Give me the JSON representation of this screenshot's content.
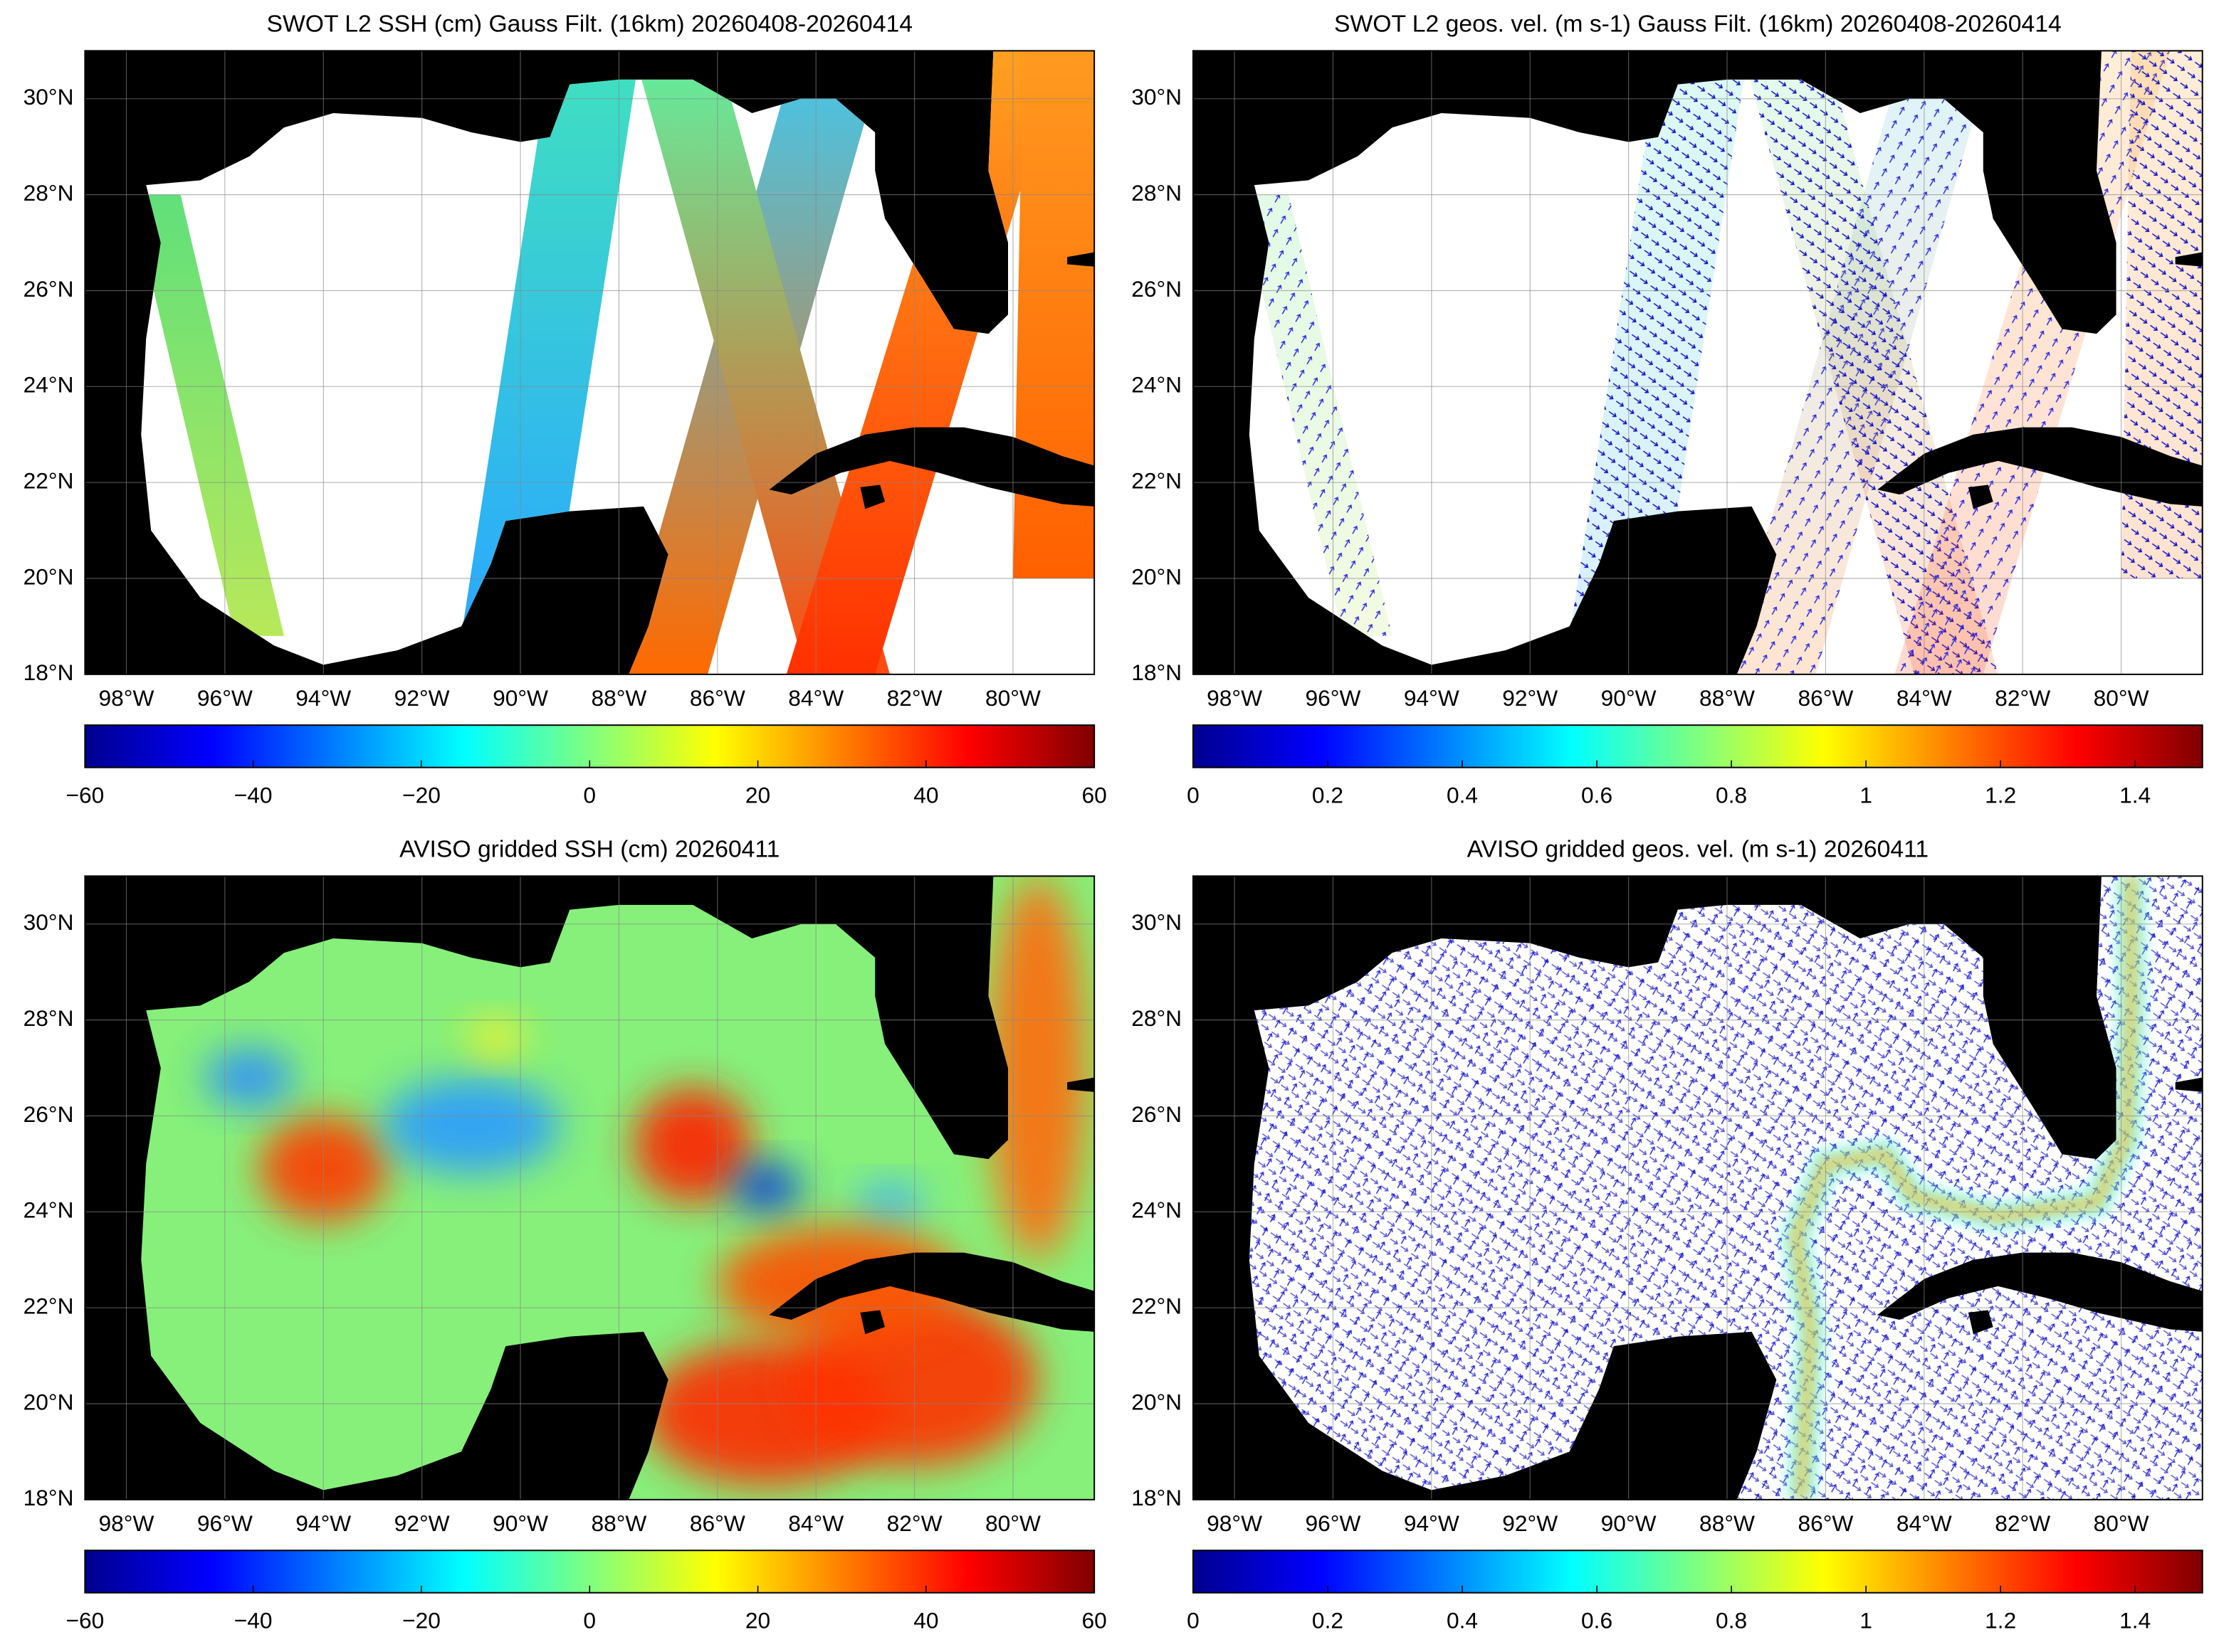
{
  "map": {
    "xlim": [
      -98.84,
      -78.35
    ],
    "ylim": [
      18,
      31
    ],
    "xticks": [
      {
        "value": -98,
        "label": "98°W"
      },
      {
        "value": -96,
        "label": "96°W"
      },
      {
        "value": -94,
        "label": "94°W"
      },
      {
        "value": -92,
        "label": "92°W"
      },
      {
        "value": -90,
        "label": "90°W"
      },
      {
        "value": -88,
        "label": "88°W"
      },
      {
        "value": -86,
        "label": "86°W"
      },
      {
        "value": -84,
        "label": "84°W"
      },
      {
        "value": -82,
        "label": "82°W"
      },
      {
        "value": -80,
        "label": "80°W"
      }
    ],
    "yticks": [
      {
        "value": 18,
        "label": "18°N"
      },
      {
        "value": 20,
        "label": "20°N"
      },
      {
        "value": 22,
        "label": "22°N"
      },
      {
        "value": 24,
        "label": "24°N"
      },
      {
        "value": 26,
        "label": "26°N"
      },
      {
        "value": 28,
        "label": "28°N"
      },
      {
        "value": 30,
        "label": "30°N"
      }
    ],
    "grid": true
  },
  "panels": [
    {
      "type": "ssh-swath",
      "title": "SWOT L2 SSH (cm) Gauss Filt. (16km) 20260408-20260414",
      "colorbar": {
        "colormap": "jet",
        "lim": [
          -60,
          60
        ],
        "ticks": [
          {
            "value": -60,
            "label": "−60"
          },
          {
            "value": -40,
            "label": "−40"
          },
          {
            "value": -20,
            "label": "−20"
          },
          0,
          20,
          40,
          60
        ]
      }
    },
    {
      "type": "vel-swath",
      "title": "SWOT L2 geos. vel. (m s-1) Gauss Filt. (16km) 20260408-20260414",
      "colorbar": {
        "colormap": "jet",
        "lim": [
          0,
          1.5
        ],
        "ticks": [
          0,
          0.2,
          0.4,
          0.6,
          0.8,
          1,
          1.2,
          1.4
        ]
      }
    },
    {
      "type": "ssh-grid",
      "title": "AVISO gridded SSH (cm) 20260411",
      "colorbar": {
        "colormap": "jet",
        "lim": [
          -60,
          60
        ],
        "ticks": [
          {
            "value": -60,
            "label": "−60"
          },
          {
            "value": -40,
            "label": "−40"
          },
          {
            "value": -20,
            "label": "−20"
          },
          0,
          20,
          40,
          60
        ]
      }
    },
    {
      "type": "vel-grid",
      "title": "AVISO gridded geos. vel. (m s-1)  20260411",
      "colorbar": {
        "colormap": "jet",
        "lim": [
          0,
          1.5
        ],
        "ticks": [
          0,
          0.2,
          0.4,
          0.6,
          0.8,
          1,
          1.2,
          1.4
        ]
      }
    }
  ]
}
